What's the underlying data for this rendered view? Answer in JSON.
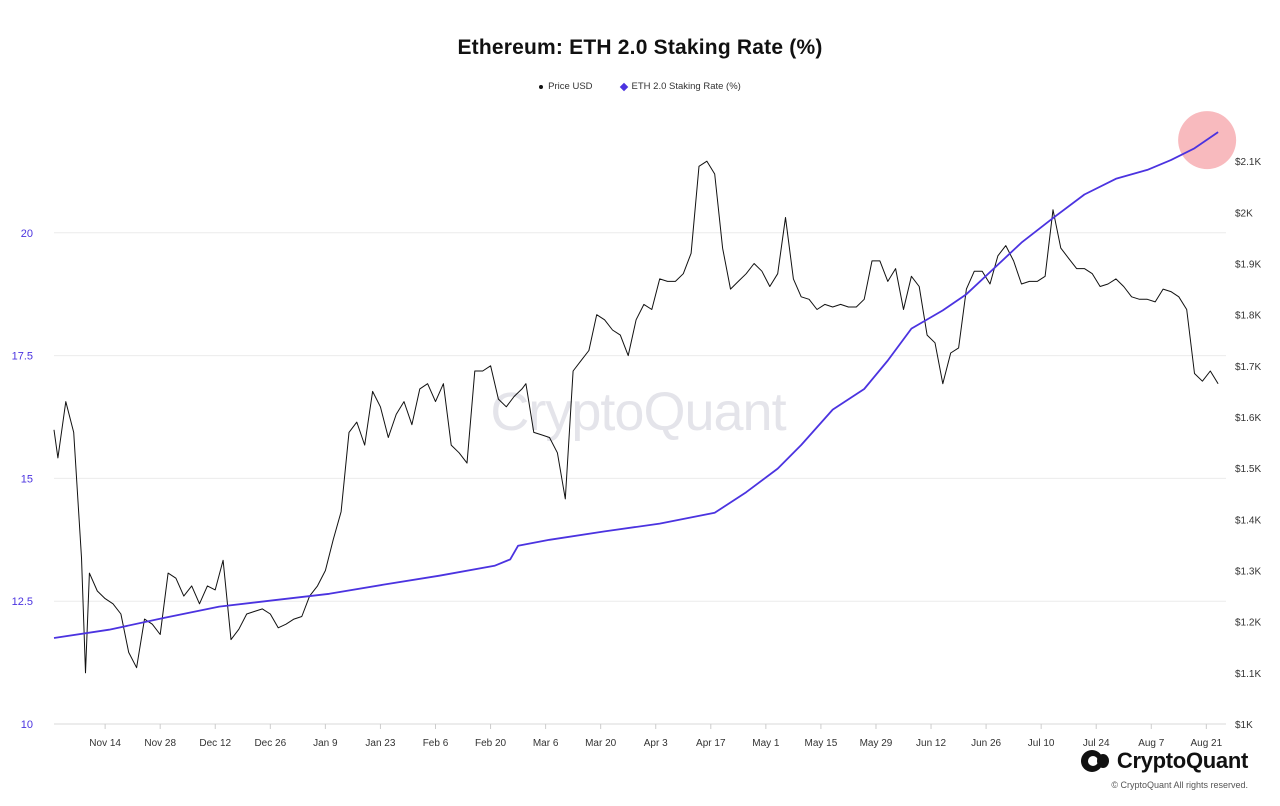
{
  "title": "Ethereum: ETH 2.0 Staking Rate (%)",
  "legend": {
    "price": "Price USD",
    "staking": "ETH 2.0 Staking Rate (%)"
  },
  "watermark": "CryptoQuant",
  "brand": {
    "name": "CryptoQuant",
    "copyright": "© CryptoQuant All rights reserved."
  },
  "colors": {
    "price": "#111111",
    "staking": "#4b33e0",
    "left_axis_text": "#4b33e0",
    "highlight": "#f5a3a8"
  },
  "chart_data": {
    "type": "line",
    "title": "Ethereum: ETH 2.0 Staking Rate (%)",
    "x_tick_labels": [
      "Nov 14",
      "Nov 28",
      "Dec 12",
      "Dec 26",
      "Jan 9",
      "Jan 23",
      "Feb 6",
      "Feb 20",
      "Mar 6",
      "Mar 20",
      "Apr 3",
      "Apr 17",
      "May 1",
      "May 15",
      "May 29",
      "Jun 12",
      "Jun 26",
      "Jul 10",
      "Jul 24",
      "Aug 7",
      "Aug 21"
    ],
    "y_left": {
      "label": "",
      "range": [
        10,
        22.5
      ],
      "ticks": [
        10,
        12.5,
        15,
        17.5,
        20
      ]
    },
    "y_right": {
      "label": "",
      "range": [
        1000,
        2200
      ],
      "ticks": [
        1000,
        1100,
        1200,
        1300,
        1400,
        1500,
        1600,
        1700,
        1800,
        1900,
        2000,
        2100
      ],
      "tick_labels": [
        "$1K",
        "$1.1K",
        "$1.2K",
        "$1.3K",
        "$1.4K",
        "$1.5K",
        "$1.6K",
        "$1.7K",
        "$1.8K",
        "$1.9K",
        "$2K",
        "$2.1K"
      ]
    },
    "grid": "horizontal",
    "legend_position": "top-center",
    "series": [
      {
        "name": "Price USD",
        "axis": "right",
        "points": [
          [
            "2022-11-01",
            1575
          ],
          [
            "2022-11-02",
            1520
          ],
          [
            "2022-11-04",
            1630
          ],
          [
            "2022-11-06",
            1570
          ],
          [
            "2022-11-08",
            1325
          ],
          [
            "2022-11-09",
            1100
          ],
          [
            "2022-11-10",
            1295
          ],
          [
            "2022-11-12",
            1260
          ],
          [
            "2022-11-14",
            1245
          ],
          [
            "2022-11-16",
            1235
          ],
          [
            "2022-11-18",
            1215
          ],
          [
            "2022-11-20",
            1140
          ],
          [
            "2022-11-22",
            1110
          ],
          [
            "2022-11-24",
            1205
          ],
          [
            "2022-11-26",
            1195
          ],
          [
            "2022-11-28",
            1175
          ],
          [
            "2022-11-30",
            1295
          ],
          [
            "2022-12-02",
            1285
          ],
          [
            "2022-12-04",
            1250
          ],
          [
            "2022-12-06",
            1270
          ],
          [
            "2022-12-08",
            1235
          ],
          [
            "2022-12-10",
            1270
          ],
          [
            "2022-12-12",
            1262
          ],
          [
            "2022-12-14",
            1320
          ],
          [
            "2022-12-16",
            1165
          ],
          [
            "2022-12-18",
            1185
          ],
          [
            "2022-12-20",
            1215
          ],
          [
            "2022-12-22",
            1220
          ],
          [
            "2022-12-24",
            1225
          ],
          [
            "2022-12-26",
            1215
          ],
          [
            "2022-12-28",
            1188
          ],
          [
            "2022-12-30",
            1195
          ],
          [
            "2023-01-01",
            1205
          ],
          [
            "2023-01-03",
            1210
          ],
          [
            "2023-01-05",
            1250
          ],
          [
            "2023-01-07",
            1270
          ],
          [
            "2023-01-09",
            1300
          ],
          [
            "2023-01-11",
            1360
          ],
          [
            "2023-01-13",
            1415
          ],
          [
            "2023-01-15",
            1570
          ],
          [
            "2023-01-17",
            1590
          ],
          [
            "2023-01-19",
            1545
          ],
          [
            "2023-01-21",
            1650
          ],
          [
            "2023-01-23",
            1620
          ],
          [
            "2023-01-25",
            1560
          ],
          [
            "2023-01-27",
            1605
          ],
          [
            "2023-01-29",
            1630
          ],
          [
            "2023-01-31",
            1585
          ],
          [
            "2023-02-02",
            1655
          ],
          [
            "2023-02-04",
            1665
          ],
          [
            "2023-02-06",
            1630
          ],
          [
            "2023-02-08",
            1665
          ],
          [
            "2023-02-10",
            1545
          ],
          [
            "2023-02-12",
            1530
          ],
          [
            "2023-02-14",
            1510
          ],
          [
            "2023-02-16",
            1690
          ],
          [
            "2023-02-18",
            1690
          ],
          [
            "2023-02-20",
            1700
          ],
          [
            "2023-02-22",
            1635
          ],
          [
            "2023-02-24",
            1620
          ],
          [
            "2023-02-26",
            1640
          ],
          [
            "2023-02-28",
            1655
          ],
          [
            "2023-03-01",
            1665
          ],
          [
            "2023-03-03",
            1570
          ],
          [
            "2023-03-05",
            1565
          ],
          [
            "2023-03-07",
            1560
          ],
          [
            "2023-03-09",
            1530
          ],
          [
            "2023-03-11",
            1440
          ],
          [
            "2023-03-13",
            1690
          ],
          [
            "2023-03-15",
            1710
          ],
          [
            "2023-03-17",
            1730
          ],
          [
            "2023-03-19",
            1800
          ],
          [
            "2023-03-21",
            1790
          ],
          [
            "2023-03-23",
            1770
          ],
          [
            "2023-03-25",
            1760
          ],
          [
            "2023-03-27",
            1720
          ],
          [
            "2023-03-29",
            1790
          ],
          [
            "2023-03-31",
            1820
          ],
          [
            "2023-04-02",
            1810
          ],
          [
            "2023-04-04",
            1870
          ],
          [
            "2023-04-06",
            1865
          ],
          [
            "2023-04-08",
            1865
          ],
          [
            "2023-04-10",
            1880
          ],
          [
            "2023-04-12",
            1920
          ],
          [
            "2023-04-14",
            2090
          ],
          [
            "2023-04-16",
            2100
          ],
          [
            "2023-04-18",
            2075
          ],
          [
            "2023-04-20",
            1930
          ],
          [
            "2023-04-22",
            1850
          ],
          [
            "2023-04-24",
            1865
          ],
          [
            "2023-04-26",
            1880
          ],
          [
            "2023-04-28",
            1900
          ],
          [
            "2023-04-30",
            1885
          ],
          [
            "2023-05-02",
            1855
          ],
          [
            "2023-05-04",
            1880
          ],
          [
            "2023-05-06",
            1990
          ],
          [
            "2023-05-08",
            1870
          ],
          [
            "2023-05-10",
            1835
          ],
          [
            "2023-05-12",
            1830
          ],
          [
            "2023-05-14",
            1810
          ],
          [
            "2023-05-16",
            1820
          ],
          [
            "2023-05-18",
            1815
          ],
          [
            "2023-05-20",
            1820
          ],
          [
            "2023-05-22",
            1815
          ],
          [
            "2023-05-24",
            1815
          ],
          [
            "2023-05-26",
            1830
          ],
          [
            "2023-05-28",
            1905
          ],
          [
            "2023-05-30",
            1905
          ],
          [
            "2023-06-01",
            1865
          ],
          [
            "2023-06-03",
            1890
          ],
          [
            "2023-06-05",
            1810
          ],
          [
            "2023-06-07",
            1875
          ],
          [
            "2023-06-09",
            1855
          ],
          [
            "2023-06-11",
            1760
          ],
          [
            "2023-06-13",
            1745
          ],
          [
            "2023-06-15",
            1665
          ],
          [
            "2023-06-17",
            1725
          ],
          [
            "2023-06-19",
            1735
          ],
          [
            "2023-06-21",
            1850
          ],
          [
            "2023-06-23",
            1885
          ],
          [
            "2023-06-25",
            1885
          ],
          [
            "2023-06-27",
            1860
          ],
          [
            "2023-06-29",
            1915
          ],
          [
            "2023-07-01",
            1935
          ],
          [
            "2023-07-03",
            1905
          ],
          [
            "2023-07-05",
            1860
          ],
          [
            "2023-07-07",
            1865
          ],
          [
            "2023-07-09",
            1865
          ],
          [
            "2023-07-11",
            1875
          ],
          [
            "2023-07-13",
            2005
          ],
          [
            "2023-07-15",
            1930
          ],
          [
            "2023-07-17",
            1910
          ],
          [
            "2023-07-19",
            1890
          ],
          [
            "2023-07-21",
            1890
          ],
          [
            "2023-07-23",
            1880
          ],
          [
            "2023-07-25",
            1855
          ],
          [
            "2023-07-27",
            1860
          ],
          [
            "2023-07-29",
            1870
          ],
          [
            "2023-07-31",
            1855
          ],
          [
            "2023-08-02",
            1835
          ],
          [
            "2023-08-04",
            1830
          ],
          [
            "2023-08-06",
            1830
          ],
          [
            "2023-08-08",
            1825
          ],
          [
            "2023-08-10",
            1850
          ],
          [
            "2023-08-12",
            1845
          ],
          [
            "2023-08-14",
            1835
          ],
          [
            "2023-08-16",
            1810
          ],
          [
            "2023-08-18",
            1685
          ],
          [
            "2023-08-20",
            1670
          ],
          [
            "2023-08-22",
            1690
          ],
          [
            "2023-08-24",
            1665
          ]
        ]
      },
      {
        "name": "ETH 2.0 Staking Rate (%)",
        "axis": "left",
        "points": [
          [
            "2022-11-01",
            11.75
          ],
          [
            "2022-11-15",
            11.92
          ],
          [
            "2022-11-29",
            12.16
          ],
          [
            "2022-12-13",
            12.39
          ],
          [
            "2022-12-27",
            12.52
          ],
          [
            "2023-01-10",
            12.65
          ],
          [
            "2023-01-24",
            12.84
          ],
          [
            "2023-02-07",
            13.02
          ],
          [
            "2023-02-21",
            13.22
          ],
          [
            "2023-02-25",
            13.35
          ],
          [
            "2023-02-27",
            13.63
          ],
          [
            "2023-03-07",
            13.75
          ],
          [
            "2023-03-21",
            13.92
          ],
          [
            "2023-04-04",
            14.08
          ],
          [
            "2023-04-18",
            14.3
          ],
          [
            "2023-04-26",
            14.72
          ],
          [
            "2023-05-04",
            15.2
          ],
          [
            "2023-05-10",
            15.68
          ],
          [
            "2023-05-18",
            16.4
          ],
          [
            "2023-05-26",
            16.82
          ],
          [
            "2023-06-01",
            17.4
          ],
          [
            "2023-06-07",
            18.05
          ],
          [
            "2023-06-15",
            18.42
          ],
          [
            "2023-06-21",
            18.75
          ],
          [
            "2023-06-27",
            19.2
          ],
          [
            "2023-07-05",
            19.8
          ],
          [
            "2023-07-13",
            20.3
          ],
          [
            "2023-07-21",
            20.78
          ],
          [
            "2023-07-29",
            21.1
          ],
          [
            "2023-08-06",
            21.28
          ],
          [
            "2023-08-12",
            21.48
          ],
          [
            "2023-08-18",
            21.72
          ],
          [
            "2023-08-24",
            22.05
          ]
        ]
      }
    ]
  }
}
